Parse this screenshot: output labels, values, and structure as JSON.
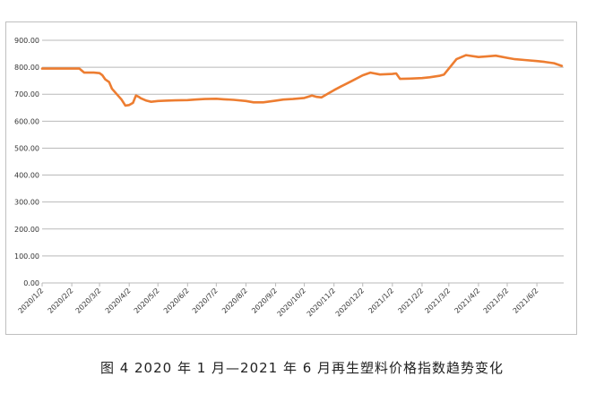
{
  "caption": "图 4  2020 年 1 月—2021 年 6 月再生塑料价格指数趋势变化",
  "colors": {
    "line": "#ED7D31",
    "grid": "#b9b9b9",
    "axis_text": "#333333"
  },
  "chart_data": {
    "type": "line",
    "title": "",
    "xlabel": "",
    "ylabel": "",
    "ylim": [
      0,
      900
    ],
    "yticks": [
      "0.00",
      "100.00",
      "200.00",
      "300.00",
      "400.00",
      "500.00",
      "600.00",
      "700.00",
      "800.00",
      "900.00"
    ],
    "xticks": [
      "2020/1/2",
      "2020/2/2",
      "2020/3/2",
      "2020/4/2",
      "2020/5/2",
      "2020/6/2",
      "2020/7/2",
      "2020/8/2",
      "2020/9/2",
      "2020/10/2",
      "2020/11/2",
      "2020/12/2",
      "2021/1/2",
      "2021/2/2",
      "2021/3/2",
      "2021/4/2",
      "2021/5/2",
      "2021/6/2"
    ],
    "grid": true,
    "legend": "none",
    "series": [
      {
        "x": [
          "2020/1/2",
          "2020/1/15",
          "2020/2/2",
          "2020/2/10",
          "2020/2/15",
          "2020/2/25",
          "2020/3/2",
          "2020/3/5",
          "2020/3/8",
          "2020/3/12",
          "2020/3/15",
          "2020/3/20",
          "2020/3/25",
          "2020/3/29",
          "2020/4/2",
          "2020/4/6",
          "2020/4/9",
          "2020/4/12",
          "2020/4/14",
          "2020/4/20",
          "2020/4/25",
          "2020/5/2",
          "2020/5/10",
          "2020/5/20",
          "2020/6/2",
          "2020/6/10",
          "2020/6/20",
          "2020/7/2",
          "2020/7/10",
          "2020/7/20",
          "2020/8/2",
          "2020/8/10",
          "2020/8/20",
          "2020/9/2",
          "2020/9/10",
          "2020/9/20",
          "2020/10/2",
          "2020/10/10",
          "2020/10/15",
          "2020/10/20",
          "2020/10/28",
          "2020/11/2",
          "2020/11/10",
          "2020/11/20",
          "2020/12/2",
          "2020/12/10",
          "2020/12/20",
          "2021/1/2",
          "2021/1/6",
          "2021/1/10",
          "2021/1/20",
          "2021/2/2",
          "2021/2/10",
          "2021/2/20",
          "2021/2/25",
          "2021/3/2",
          "2021/3/10",
          "2021/3/20",
          "2021/4/2",
          "2021/4/10",
          "2021/4/20",
          "2021/5/2",
          "2021/5/10",
          "2021/5/20",
          "2021/6/2",
          "2021/6/10",
          "2021/6/20",
          "2021/6/28"
        ],
        "values": [
          795,
          795,
          795,
          795,
          780,
          780,
          778,
          770,
          755,
          745,
          720,
          700,
          680,
          658,
          660,
          668,
          695,
          690,
          685,
          676,
          672,
          675,
          676,
          677,
          678,
          680,
          682,
          683,
          681,
          679,
          675,
          670,
          670,
          676,
          680,
          682,
          686,
          695,
          690,
          688,
          705,
          715,
          730,
          748,
          770,
          780,
          773,
          775,
          777,
          757,
          758,
          760,
          763,
          768,
          773,
          795,
          830,
          845,
          838,
          840,
          843,
          835,
          830,
          827,
          823,
          820,
          815,
          805
        ]
      }
    ]
  }
}
